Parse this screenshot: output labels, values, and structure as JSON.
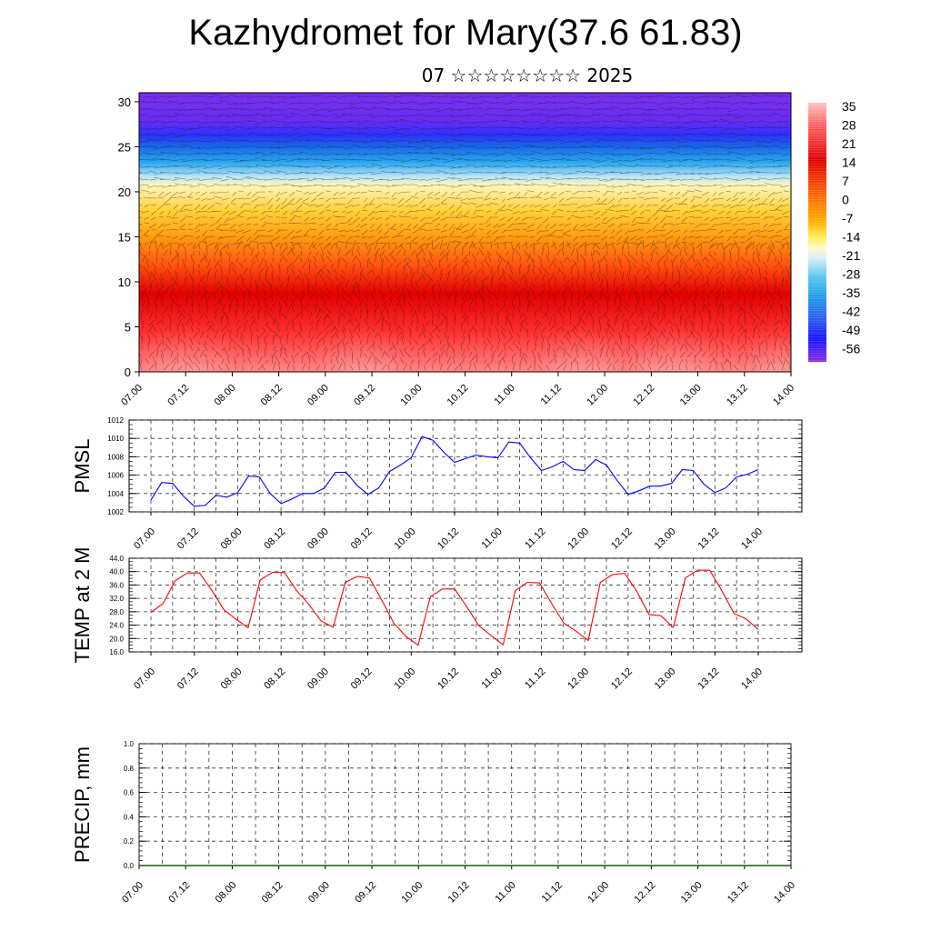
{
  "title": "Kazhydromet for Mary(37.6 61.83)",
  "subtitle": "07 ☆☆☆☆☆☆☆☆ 2025",
  "colors": {
    "pmsl_line": "#0000ff",
    "temp_line": "#ff0000",
    "precip_line": "#0b5e0b"
  },
  "chart_data": [
    {
      "type": "heatmap",
      "name": "upper-air-cross-section",
      "x_ticks": [
        "07.00",
        "07.12",
        "08.00",
        "08.12",
        "09.00",
        "09.12",
        "10.00",
        "10.12",
        "11.00",
        "11.12",
        "12.00",
        "12.12",
        "13.00",
        "13.12",
        "14.00"
      ],
      "y_ticks": [
        "0",
        "5",
        "10",
        "15",
        "20",
        "25",
        "30"
      ],
      "ylim": [
        0,
        31
      ],
      "colorbar_labels": [
        "35",
        "28",
        "21",
        "14",
        "7",
        "0",
        "-7",
        "-14",
        "-21",
        "-28",
        "-35",
        "-42",
        "-49",
        "-56"
      ],
      "colorbar_range": [
        -60,
        38
      ],
      "wind_vectors": true
    },
    {
      "type": "line",
      "name": "pmsl",
      "ylabel": "PMSL",
      "ylim": [
        1002,
        1012
      ],
      "y_ticks": [
        "1012",
        "1010",
        "1008",
        "1006",
        "1004",
        "1002"
      ],
      "x_ticks": [
        "07.00",
        "07.12",
        "08.00",
        "08.12",
        "09.00",
        "09.12",
        "10.00",
        "10.12",
        "11.00",
        "11.12",
        "12.00",
        "12.12",
        "13.00",
        "13.12",
        "14.00"
      ],
      "x_step_hours": 3,
      "values": [
        1003.3,
        1005.2,
        1005.1,
        1003.7,
        1002.6,
        1002.7,
        1003.8,
        1003.6,
        1004.1,
        1005.9,
        1005.8,
        1004.0,
        1002.9,
        1003.4,
        1004.0,
        1004.0,
        1004.6,
        1006.3,
        1006.3,
        1004.9,
        1003.9,
        1004.6,
        1006.4,
        1007.1,
        1007.9,
        1010.2,
        1009.8,
        1008.5,
        1007.4,
        1007.8,
        1008.2,
        1008.0,
        1007.9,
        1009.6,
        1009.5,
        1007.9,
        1006.5,
        1006.9,
        1007.5,
        1006.6,
        1006.5,
        1007.7,
        1007.1,
        1005.4,
        1003.9,
        1004.3,
        1004.8,
        1004.8,
        1005.1,
        1006.6,
        1006.5,
        1005.0,
        1004.1,
        1004.6,
        1005.8,
        1006.1,
        1006.6
      ]
    },
    {
      "type": "line",
      "name": "temp-2m",
      "ylabel": "TEMP at 2 M",
      "ylim": [
        16,
        44
      ],
      "y_ticks": [
        "44.0",
        "40.0",
        "36.0",
        "32.0",
        "28.0",
        "24.0",
        "20.0",
        "16.0"
      ],
      "x_ticks": [
        "07.00",
        "07.12",
        "08.00",
        "08.12",
        "09.00",
        "09.12",
        "10.00",
        "10.12",
        "11.00",
        "11.12",
        "12.00",
        "12.12",
        "13.00",
        "13.12",
        "14.00"
      ],
      "x_step_hours": 6,
      "values": [
        27.8,
        30.5,
        37.3,
        39.6,
        39.6,
        34.5,
        28.6,
        25.8,
        23.2,
        37.5,
        39.8,
        39.7,
        34.3,
        30.2,
        25.3,
        23.4,
        36.8,
        38.6,
        38.1,
        31.5,
        24.6,
        20.6,
        18.0,
        32.5,
        34.8,
        34.8,
        29.5,
        23.8,
        20.9,
        18.1,
        34.3,
        36.8,
        36.6,
        30.4,
        24.6,
        22.2,
        19.4,
        36.8,
        39.1,
        39.5,
        34.1,
        27.2,
        26.8,
        23.3,
        38.1,
        40.4,
        40.4,
        34.3,
        27.5,
        25.9,
        22.7
      ]
    },
    {
      "type": "line",
      "name": "precip",
      "ylabel": "PRECIP, mm",
      "ylim": [
        0,
        1
      ],
      "y_ticks": [
        "1.0",
        "0.8",
        "0.6",
        "0.4",
        "0.2",
        "0.0"
      ],
      "x_ticks": [
        "07.00",
        "07.12",
        "08.00",
        "08.12",
        "09.00",
        "09.12",
        "10.00",
        "10.12",
        "11.00",
        "11.12",
        "12.00",
        "12.12",
        "13.00",
        "13.12",
        "14.00"
      ],
      "values": [
        0,
        0,
        0,
        0,
        0,
        0,
        0,
        0,
        0,
        0,
        0,
        0,
        0,
        0,
        0
      ]
    }
  ]
}
